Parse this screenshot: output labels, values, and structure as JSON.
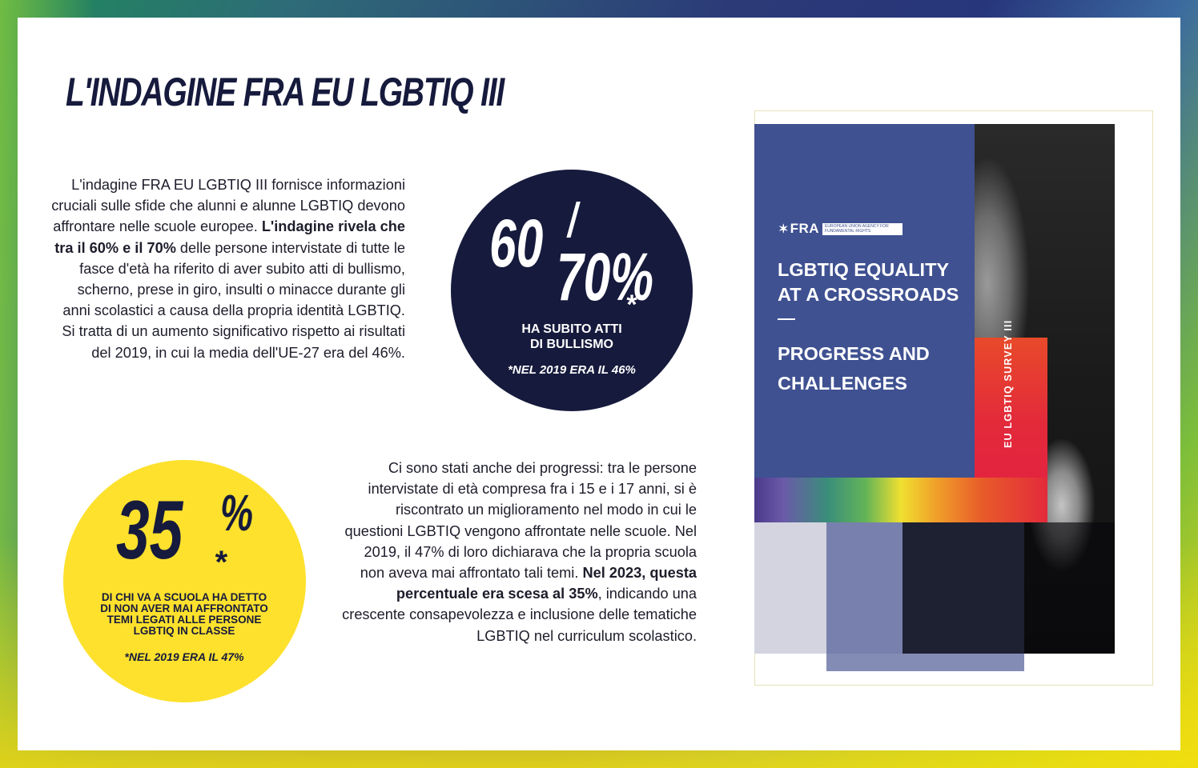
{
  "title": "L'INDAGINE FRA EU LGBTIQ III",
  "para1": {
    "text_a": "L'indagine FRA EU LGBTIQ III fornisce informazioni cruciali sulle sfide che alunni e alunne LGBTIQ devono affrontare nelle scuole europee. ",
    "bold_a": "L'indagine rivela che tra il 60% e il 70%",
    "text_b": " delle persone intervistate di tutte le fasce d'età ha riferito di aver subito atti di bullismo, scherno, prese in giro, insulti o minacce durante gli anni scolastici a causa della propria identità LGBTIQ. Si tratta di un aumento significativo rispetto ai risultati del 2019, in cui la media dell'UE-27 era del 46%."
  },
  "para2": {
    "text_a": "Ci sono stati anche dei progressi: tra le persone intervistate di età compresa fra i 15 e i 17 anni, si è riscontrato un miglioramento nel modo in cui le questioni LGBTIQ vengono affrontate nelle scuole. Nel 2019, il 47% di loro dichiarava che la propria scuola non aveva mai affrontato tali temi. ",
    "bold_a": "Nel 2023, questa percentuale era scesa al 35%",
    "text_b": ", indicando una crescente consapevolezza e inclusione delle tematiche LGBTIQ nel curriculum scolastico."
  },
  "stat_bullying": {
    "num1": "60",
    "slash": "/",
    "num2": "70%",
    "asterisk": "*",
    "label_line1": "HA SUBITO ATTI",
    "label_line2": "DI BULLISMO",
    "note": "*NEL 2019 ERA IL 46%",
    "color": "#161a3c"
  },
  "stat_school": {
    "num": "35",
    "percent": "%",
    "asterisk": "*",
    "label_line1": "DI CHI VA A SCUOLA HA DETTO",
    "label_line2": "DI NON AVER MAI AFFRONTATO",
    "label_line3": "TEMI LEGATI ALLE PERSONE",
    "label_line4": "LGBTIQ IN CLASSE",
    "note": "*NEL 2019 ERA IL 47%",
    "color": "#fde12d"
  },
  "cover": {
    "logo_word": "FRA",
    "logo_tagline": "EUROPEAN UNION AGENCY FOR FUNDAMENTAL RIGHTS",
    "title_line1": "LGBTIQ EQUALITY",
    "title_line2": "AT A CROSSROADS",
    "subtitle_line1": "PROGRESS AND",
    "subtitle_line2": "CHALLENGES",
    "vertical_label": "EU LGBTIQ SURVEY III",
    "panel_color": "#3f5191"
  }
}
